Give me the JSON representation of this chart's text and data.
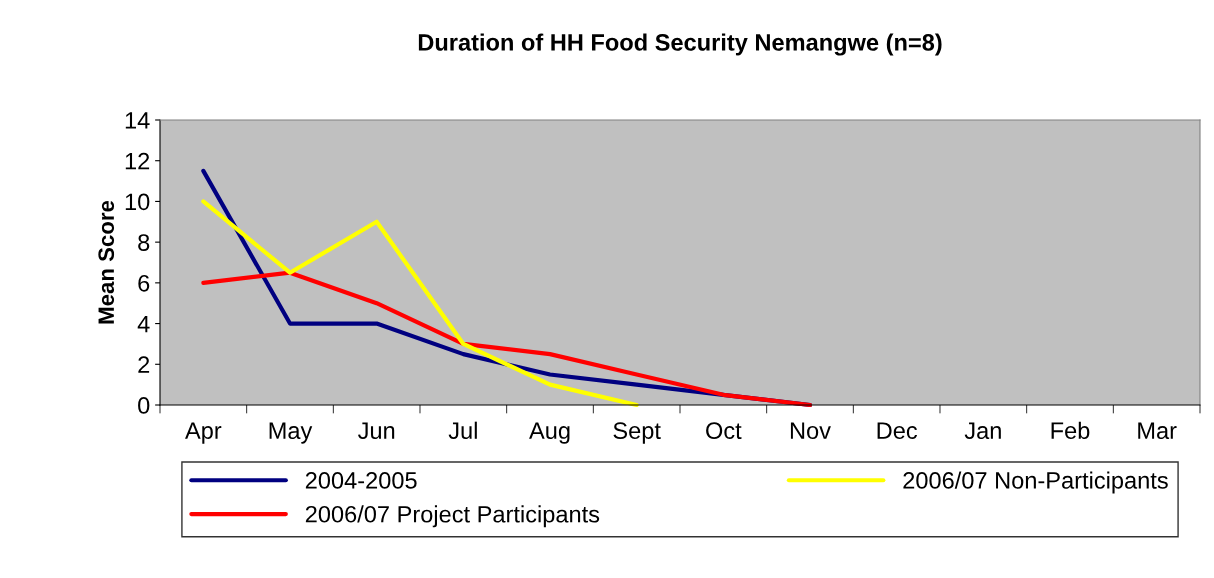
{
  "chart_data": {
    "type": "line",
    "title": "Duration of HH Food Security Nemangwe (n=8)",
    "ylabel": "Mean Score",
    "categories": [
      "Apr",
      "May",
      "Jun",
      "Jul",
      "Aug",
      "Sept",
      "Oct",
      "Nov",
      "Dec",
      "Jan",
      "Feb",
      "Mar"
    ],
    "series": [
      {
        "name": "2004-2005",
        "color": "#000080",
        "values": [
          11.5,
          4,
          4,
          2.5,
          1.5,
          1,
          0.5,
          0,
          null,
          null,
          null,
          null
        ]
      },
      {
        "name": "2006/07 Project Participants",
        "color": "#ff0000",
        "values": [
          6,
          6.5,
          5,
          3,
          2.5,
          1.5,
          0.5,
          0,
          null,
          null,
          null,
          null
        ]
      },
      {
        "name": "2006/07 Non-Participants",
        "color": "#ffff00",
        "values": [
          10,
          6.5,
          9,
          3,
          1,
          0,
          null,
          null,
          null,
          null,
          null,
          null
        ]
      }
    ],
    "ylim": [
      0,
      14
    ],
    "yticks": [
      0,
      2,
      4,
      6,
      8,
      10,
      12,
      14
    ],
    "grid": false,
    "legend": "bottom",
    "marker": "none",
    "line_style": "solid"
  }
}
